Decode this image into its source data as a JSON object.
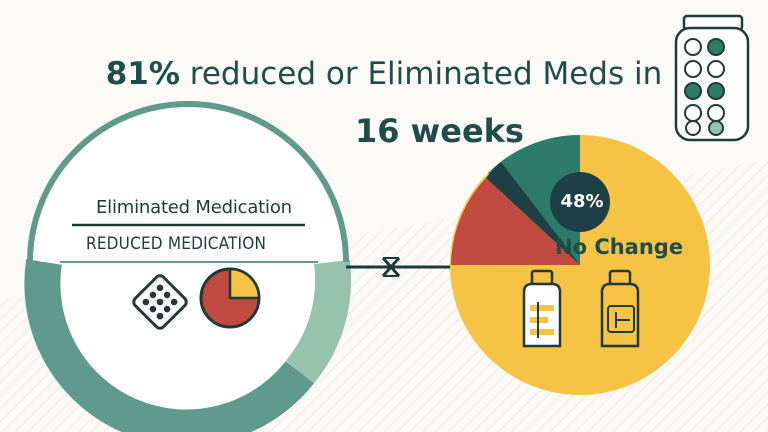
{
  "headline": {
    "percent": "81%",
    "rest": " reduced or Eliminated Meds in",
    "duration": "16 weeks"
  },
  "left_panel": {
    "eliminated_label": "Eliminated Medication",
    "reduced_label": "REDUCED MEDICATION"
  },
  "right_panel": {
    "percent_badge": "48%",
    "no_change_label": "No Change"
  },
  "colors": {
    "teal_dark": "#5f9a8d",
    "teal_light": "#97c2ad",
    "green": "#2e7c67",
    "navy": "#1f3f46",
    "red": "#c14a41",
    "yellow": "#f6c345",
    "text_dark": "#1f4d4a"
  },
  "icons": [
    "pill-jar-icon",
    "pill-blister-icon",
    "pie-chart-icon",
    "medicine-bottle-icon",
    "connector-arrows-icon"
  ]
}
